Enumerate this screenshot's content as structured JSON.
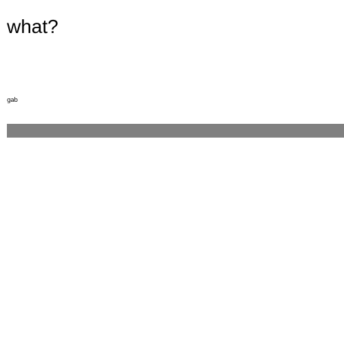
{
  "heading": {
    "text": "what?"
  },
  "small_text": {
    "text": "gab"
  },
  "bar": {
    "color": "#808080"
  }
}
